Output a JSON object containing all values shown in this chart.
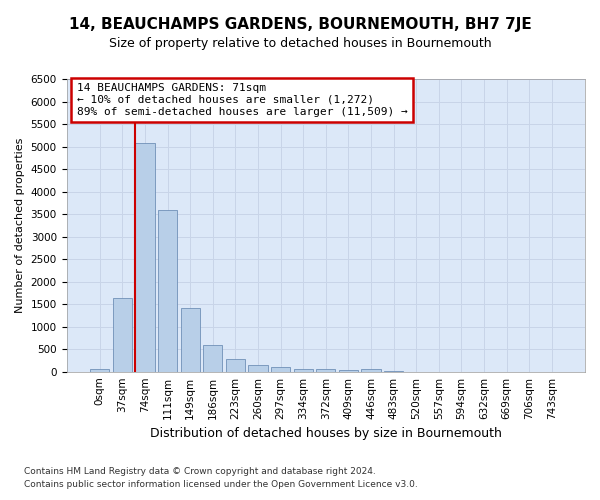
{
  "title": "14, BEAUCHAMPS GARDENS, BOURNEMOUTH, BH7 7JE",
  "subtitle": "Size of property relative to detached houses in Bournemouth",
  "xlabel": "Distribution of detached houses by size in Bournemouth",
  "ylabel": "Number of detached properties",
  "footnote1": "Contains HM Land Registry data © Crown copyright and database right 2024.",
  "footnote2": "Contains public sector information licensed under the Open Government Licence v3.0.",
  "bar_labels": [
    "0sqm",
    "37sqm",
    "74sqm",
    "111sqm",
    "149sqm",
    "186sqm",
    "223sqm",
    "260sqm",
    "297sqm",
    "334sqm",
    "372sqm",
    "409sqm",
    "446sqm",
    "483sqm",
    "520sqm",
    "557sqm",
    "594sqm",
    "632sqm",
    "669sqm",
    "706sqm",
    "743sqm"
  ],
  "bar_values": [
    70,
    1640,
    5080,
    3600,
    1420,
    590,
    290,
    150,
    100,
    55,
    50,
    30,
    55,
    5,
    3,
    2,
    1,
    1,
    1,
    0,
    0
  ],
  "bar_color": "#b8cfe8",
  "bar_edge_color": "#7090b8",
  "highlight_index": 2,
  "highlight_color": "#cc0000",
  "ylim": [
    0,
    6500
  ],
  "yticks": [
    0,
    500,
    1000,
    1500,
    2000,
    2500,
    3000,
    3500,
    4000,
    4500,
    5000,
    5500,
    6000,
    6500
  ],
  "annotation_line1": "14 BEAUCHAMPS GARDENS: 71sqm",
  "annotation_line2": "← 10% of detached houses are smaller (1,272)",
  "annotation_line3": "89% of semi-detached houses are larger (11,509) →",
  "annotation_box_color": "#ffffff",
  "annotation_box_edge": "#cc0000",
  "grid_color": "#c8d4e8",
  "bg_color": "#dce8f8",
  "fig_bg_color": "#ffffff",
  "title_fontsize": 11,
  "subtitle_fontsize": 9,
  "ylabel_fontsize": 8,
  "xlabel_fontsize": 9,
  "tick_fontsize": 7.5,
  "annotation_fontsize": 8,
  "footnote_fontsize": 6.5
}
